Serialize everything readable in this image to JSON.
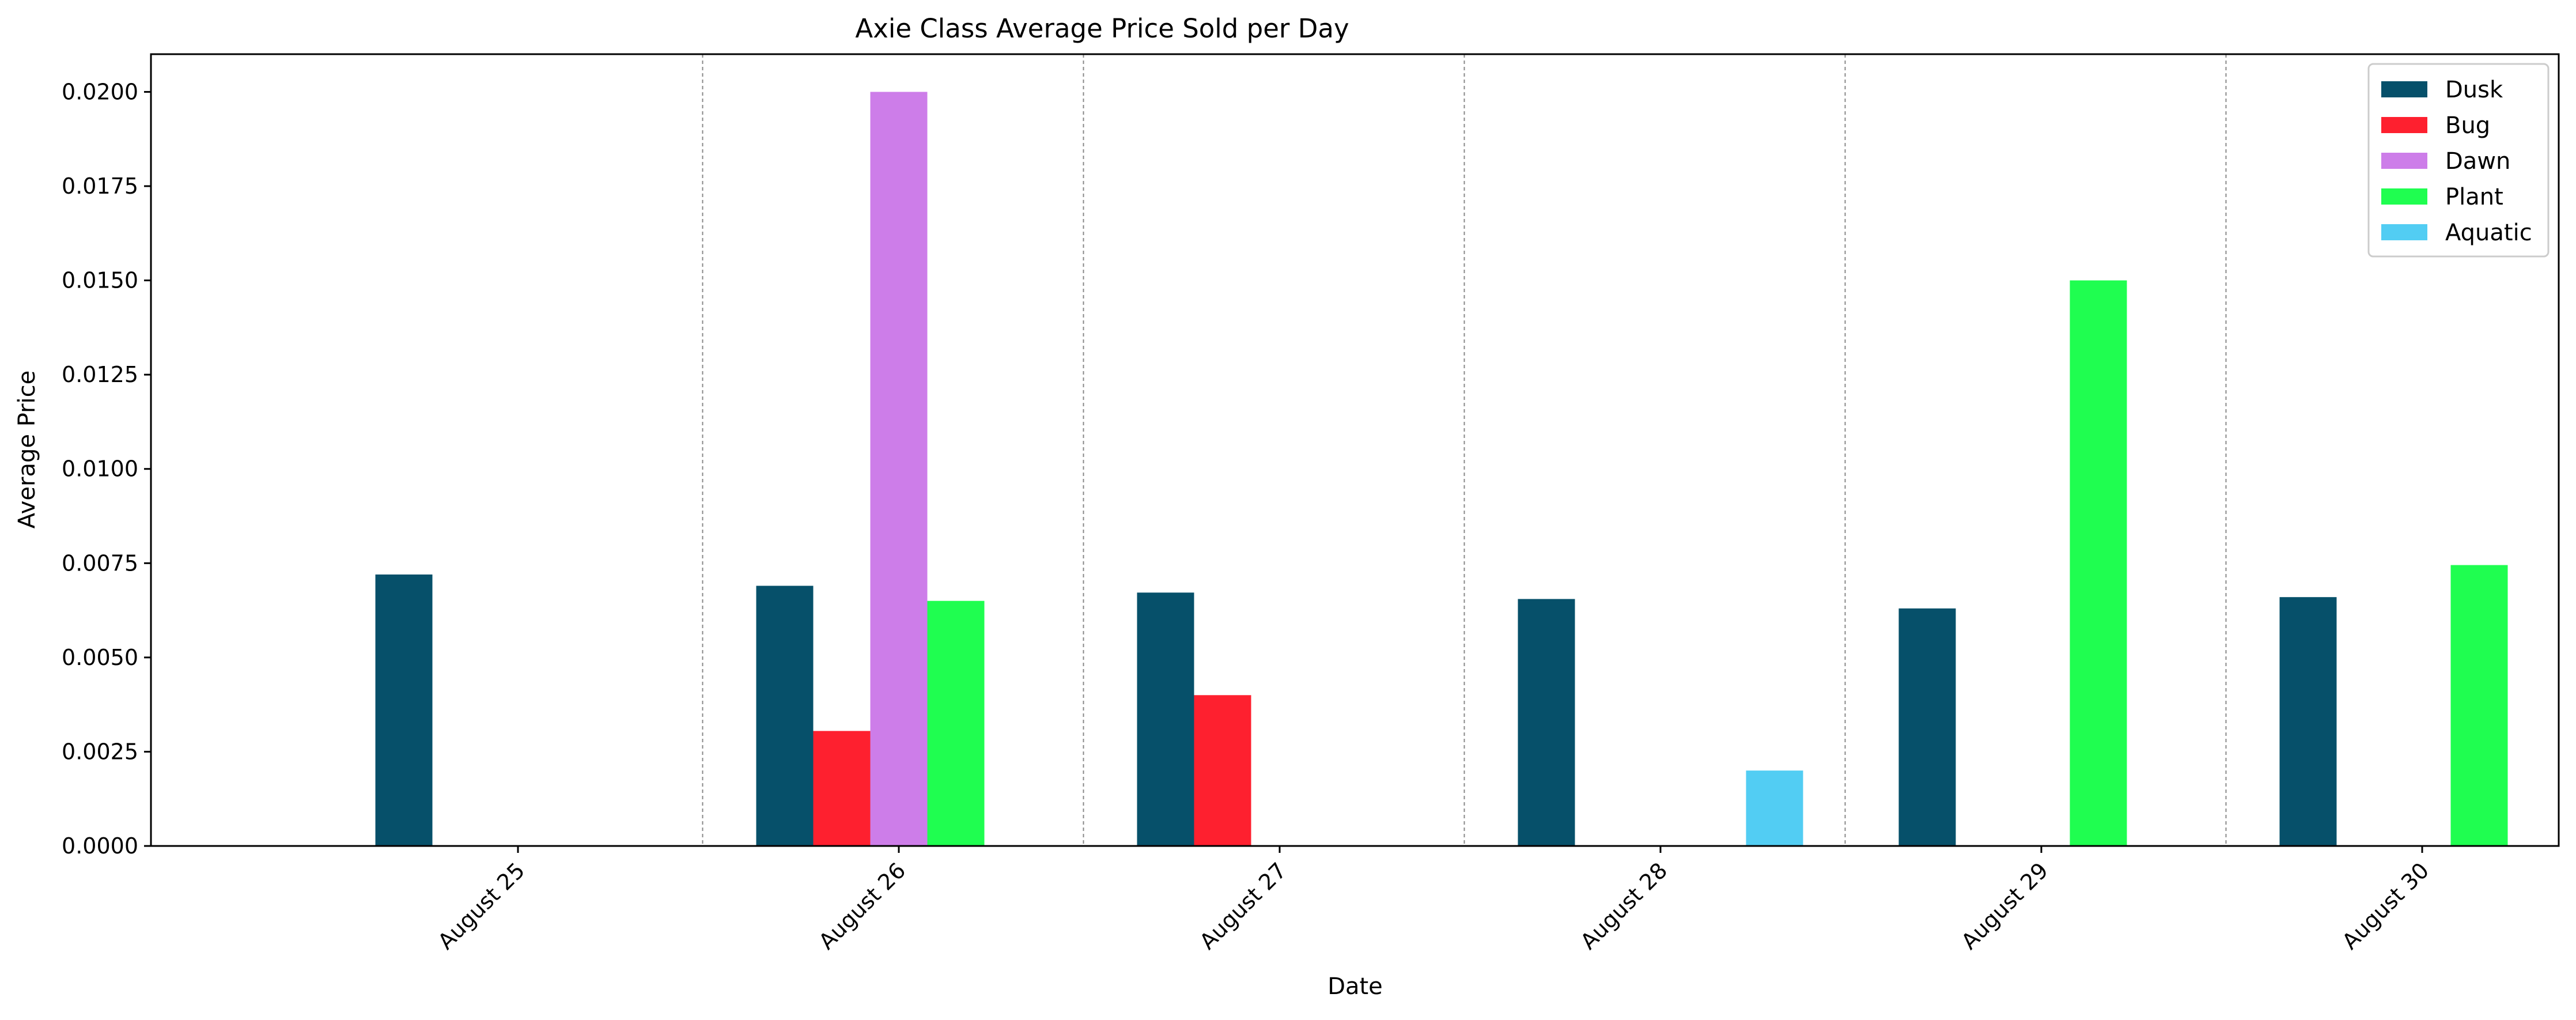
{
  "chart_data": {
    "type": "bar",
    "title": "Axie Class Average Price Sold per Day",
    "xlabel": "Date",
    "ylabel": "Average Price",
    "categories": [
      "August 25",
      "August 26",
      "August 27",
      "August 28",
      "August 29",
      "August 30"
    ],
    "ylim": [
      0,
      0.021
    ],
    "yticks": [
      "0.0000",
      "0.0025",
      "0.0050",
      "0.0075",
      "0.0100",
      "0.0125",
      "0.0150",
      "0.0175",
      "0.0200"
    ],
    "grid": "dashed vertical separators between days",
    "legend_position": "top-right",
    "series": [
      {
        "name": "Dusk",
        "color": "#06506a",
        "values": [
          0.0072,
          0.0069,
          0.00672,
          0.00655,
          0.0063,
          0.0066
        ]
      },
      {
        "name": "Bug",
        "color": "#fe202f",
        "values": [
          null,
          0.00305,
          0.004,
          null,
          null,
          null
        ]
      },
      {
        "name": "Dawn",
        "color": "#cd7de9",
        "values": [
          null,
          0.02,
          null,
          null,
          null,
          null
        ]
      },
      {
        "name": "Plant",
        "color": "#1ffe50",
        "values": [
          null,
          0.0065,
          null,
          null,
          0.015,
          0.00745
        ]
      },
      {
        "name": "Aquatic",
        "color": "#52cdf3",
        "values": [
          null,
          null,
          null,
          0.002,
          null,
          null
        ]
      }
    ]
  }
}
